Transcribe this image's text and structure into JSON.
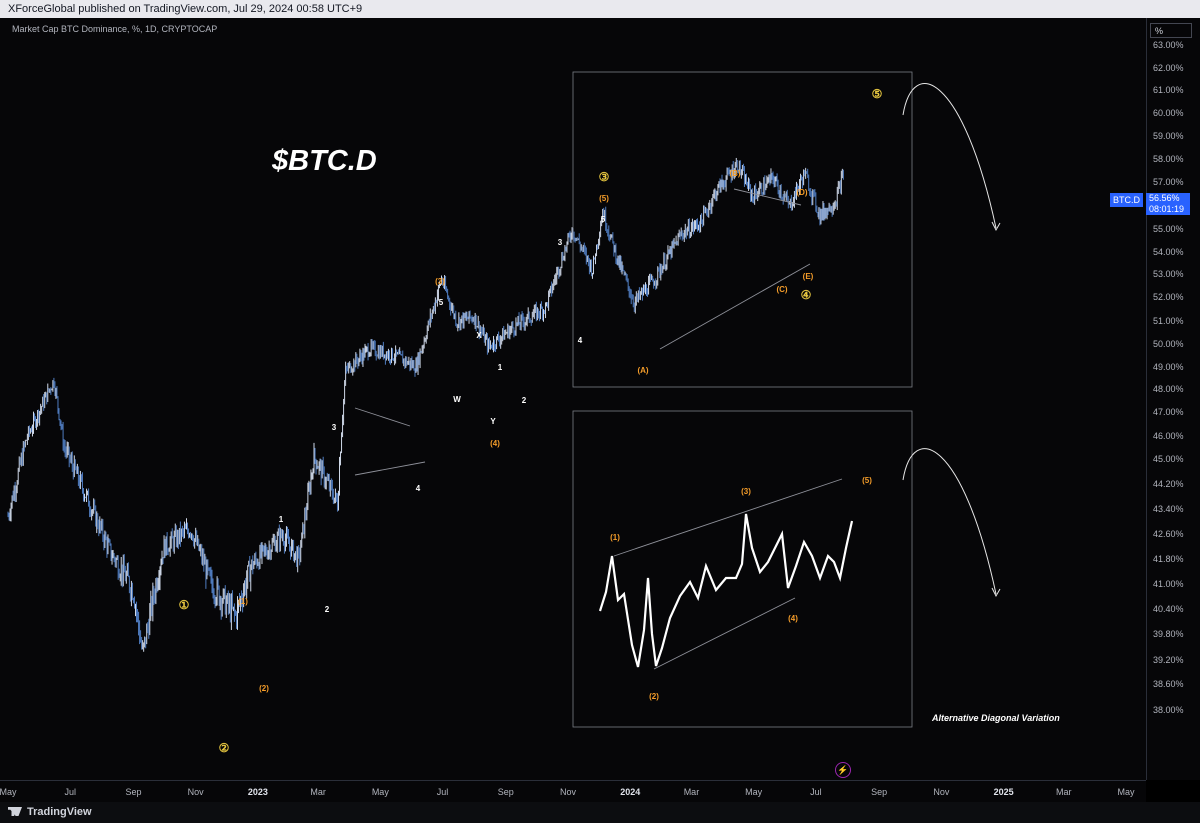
{
  "header": {
    "published": "XForceGlobal published on TradingView.com, Jul 29, 2024 00:58 UTC+9"
  },
  "legend": {
    "symbol": "Market Cap BTC Dominance, %, 1D, CRYPTOCAP"
  },
  "toolbar": {
    "percent_label": "%"
  },
  "price_tag": {
    "symbol": "BTC.D",
    "value": "56.56%",
    "countdown": "08:01:19"
  },
  "annotations": {
    "title": "$BTC.D",
    "alt_note": "Alternative Diagonal Variation"
  },
  "footer": {
    "brand": "TradingView"
  },
  "icons": {
    "replay": "lightning-icon",
    "logo": "tradingview-logo"
  },
  "colors": {
    "candle": "#5b86c6",
    "wave_orange": "#f59d2a",
    "wave_yellow": "#e8c840",
    "tag": "#2962ff"
  },
  "chart_data": {
    "type": "line",
    "title": "",
    "xlabel": "",
    "ylabel": "",
    "ylim": [
      37.6,
      63.3
    ],
    "y_ticks": [
      "63.00%",
      "62.00%",
      "61.00%",
      "60.00%",
      "59.00%",
      "58.00%",
      "57.00%",
      "56.00%",
      "55.00%",
      "54.00%",
      "53.00%",
      "52.00%",
      "51.00%",
      "50.00%",
      "49.00%",
      "48.00%",
      "47.00%",
      "46.00%",
      "45.00%",
      "44.20%",
      "43.40%",
      "42.60%",
      "41.80%",
      "41.00%",
      "40.40%",
      "39.80%",
      "39.20%",
      "38.60%",
      "38.00%"
    ],
    "x_ticks": [
      "May",
      "Jul",
      "Sep",
      "Nov",
      "2023",
      "Mar",
      "May",
      "Jul",
      "Sep",
      "Nov",
      "2024",
      "Mar",
      "May",
      "Jul",
      "Sep",
      "Nov",
      "2025",
      "Mar",
      "May"
    ],
    "series": [
      {
        "values_points": [
          [
            "2022-05-01",
            42.6
          ],
          [
            "2022-05-20",
            45.2
          ],
          [
            "2022-06-15",
            47.6
          ],
          [
            "2022-06-25",
            44.8
          ],
          [
            "2022-07-20",
            43.0
          ],
          [
            "2022-08-10",
            41.4
          ],
          [
            "2022-09-01",
            40.4
          ],
          [
            "2022-09-10",
            38.9
          ],
          [
            "2022-10-01",
            41.6
          ],
          [
            "2022-10-27",
            42.2
          ],
          [
            "2022-11-15",
            40.6
          ],
          [
            "2022-12-10",
            39.8
          ],
          [
            "2022-12-25",
            41.0
          ],
          [
            "2023-01-25",
            42.0
          ],
          [
            "2023-02-10",
            41.2
          ],
          [
            "2023-02-25",
            44.5
          ],
          [
            "2023-03-20",
            43.0
          ],
          [
            "2023-03-28",
            48.0
          ],
          [
            "2023-04-20",
            49.0
          ],
          [
            "2023-05-15",
            48.7
          ],
          [
            "2023-06-05",
            48.2
          ],
          [
            "2023-06-30",
            52.0
          ],
          [
            "2023-07-15",
            50.2
          ],
          [
            "2023-08-01",
            50.4
          ],
          [
            "2023-08-15",
            49.1
          ],
          [
            "2023-09-10",
            50.0
          ],
          [
            "2023-10-10",
            50.8
          ],
          [
            "2023-11-05",
            54.2
          ],
          [
            "2023-11-25",
            52.4
          ],
          [
            "2023-12-05",
            55.0
          ],
          [
            "2023-12-20",
            52.8
          ],
          [
            "2024-01-05",
            51.0
          ],
          [
            "2024-01-25",
            52.0
          ],
          [
            "2024-02-20",
            54.0
          ],
          [
            "2024-03-10",
            54.5
          ],
          [
            "2024-03-25",
            55.8
          ],
          [
            "2024-04-15",
            57.0
          ],
          [
            "2024-04-30",
            55.6
          ],
          [
            "2024-05-20",
            56.4
          ],
          [
            "2024-06-05",
            55.2
          ],
          [
            "2024-06-20",
            56.6
          ],
          [
            "2024-07-05",
            54.8
          ],
          [
            "2024-07-20",
            55.4
          ],
          [
            "2024-07-28",
            56.56
          ]
        ]
      }
    ],
    "wave_labels": {
      "yellow": [
        "①",
        "②",
        "③",
        "④",
        "⑤"
      ],
      "orange": [
        "(1)",
        "(2)",
        "(3)",
        "(4)",
        "(5)",
        "(A)",
        "(B)",
        "(C)",
        "(D)",
        "(E)"
      ],
      "white": [
        "1",
        "2",
        "3",
        "4",
        "5",
        "W",
        "X",
        "Y"
      ],
      "alt_orange": [
        "(1)",
        "(2)",
        "(3)",
        "(4)",
        "(5)"
      ]
    },
    "last_value": 56.56,
    "grid": false,
    "legend": "top-left"
  }
}
